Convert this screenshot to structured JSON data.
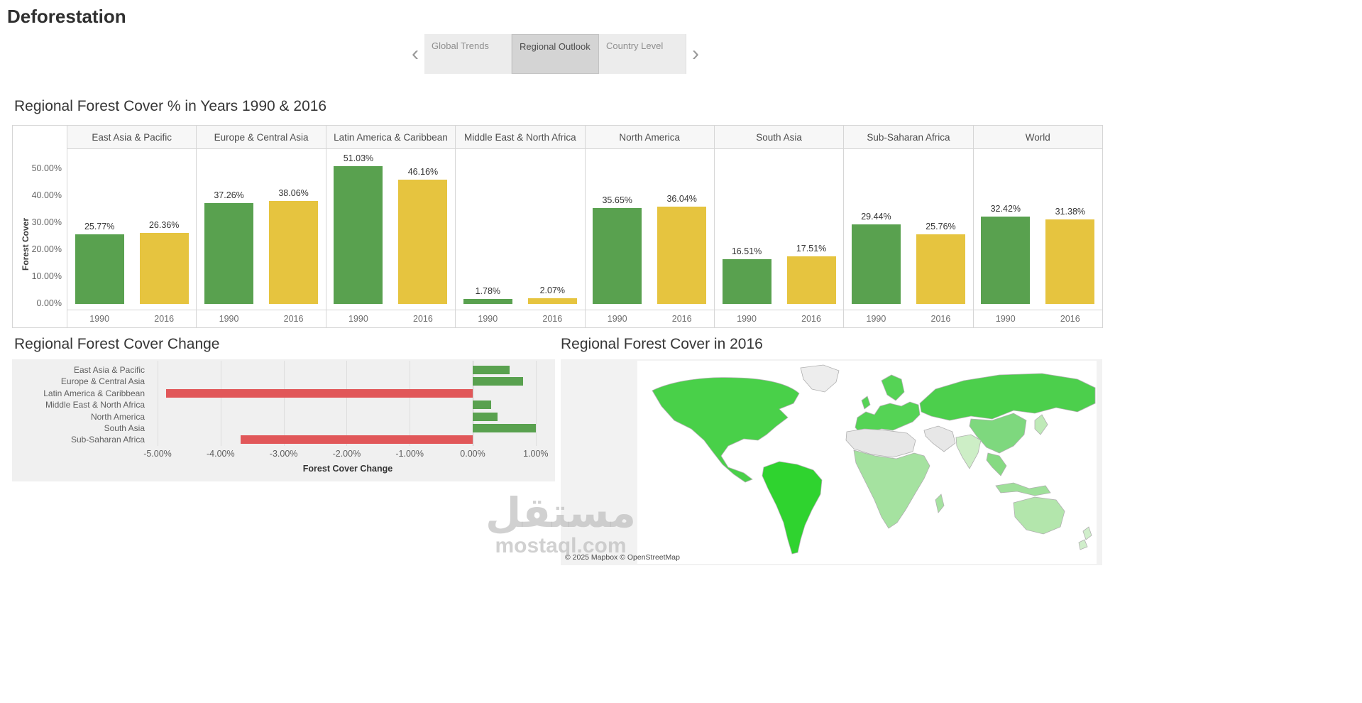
{
  "page": {
    "title": "Deforestation"
  },
  "nav": {
    "prev_glyph": "‹",
    "next_glyph": "›",
    "tabs": [
      {
        "label": "Global Trends",
        "active": false
      },
      {
        "label": "Regional Outlook",
        "active": true
      },
      {
        "label": "Country Level",
        "active": false
      }
    ]
  },
  "chart_data": [
    {
      "type": "bar",
      "title": "Regional Forest Cover % in Years 1990 & 2016",
      "ylabel": "Forest Cover",
      "ylim": [
        0,
        57
      ],
      "yticks": [
        0,
        10,
        20,
        30,
        40,
        50
      ],
      "ytick_unit": "%",
      "categories": [
        "East Asia & Pacific",
        "Europe & Central Asia",
        "Latin America & Caribbean",
        "Middle East & North Africa",
        "North America",
        "South Asia",
        "Sub-Saharan Africa",
        "World"
      ],
      "x_groups": [
        "1990",
        "2016"
      ],
      "series": [
        {
          "name": "1990",
          "color": "#59a14f",
          "values": [
            25.77,
            37.26,
            51.03,
            1.78,
            35.65,
            16.51,
            29.44,
            32.42
          ]
        },
        {
          "name": "2016",
          "color": "#e6c43f",
          "values": [
            26.36,
            38.06,
            46.16,
            2.07,
            36.04,
            17.51,
            25.76,
            31.38
          ]
        }
      ],
      "grid": false,
      "legend": "none"
    },
    {
      "type": "bar-horizontal",
      "title": "Regional Forest Cover Change",
      "xlabel": "Forest Cover Change",
      "xlim": [
        -5.25,
        1.25
      ],
      "xticks": [
        -5,
        -4,
        -3,
        -2,
        -1,
        0,
        1
      ],
      "xtick_unit": "%",
      "categories": [
        "East Asia & Pacific",
        "Europe & Central Asia",
        "Latin America & Caribbean",
        "Middle East & North Africa",
        "North America",
        "South Asia",
        "Sub-Saharan Africa"
      ],
      "values": [
        0.59,
        0.8,
        -4.87,
        0.29,
        0.39,
        1.0,
        -3.68
      ],
      "positive_color": "#59a14f",
      "negative_color": "#e15759",
      "grid": true,
      "legend": "none"
    },
    {
      "type": "map",
      "title": "Regional Forest Cover in 2016",
      "attribution": "© 2025 Mapbox © OpenStreetMap",
      "regions": [
        {
          "id": "north-america",
          "label": "North America",
          "fill": "#49d049"
        },
        {
          "id": "greenland",
          "label": "Greenland",
          "fill": "#ededed"
        },
        {
          "id": "south-america",
          "label": "Latin America & Caribbean",
          "fill": "#2fd32f"
        },
        {
          "id": "europe",
          "label": "Europe",
          "fill": "#55d355"
        },
        {
          "id": "scandinavia",
          "label": "Scandinavia",
          "fill": "#55d355"
        },
        {
          "id": "uk",
          "label": "United Kingdom",
          "fill": "#55d355"
        },
        {
          "id": "russia",
          "label": "Russia & Central Asia",
          "fill": "#4ccf4c"
        },
        {
          "id": "east-asia",
          "label": "East Asia",
          "fill": "#7ed87e"
        },
        {
          "id": "japan",
          "label": "Japan",
          "fill": "#bfeab8"
        },
        {
          "id": "india",
          "label": "South Asia",
          "fill": "#cdeec6"
        },
        {
          "id": "middle-east",
          "label": "Middle East",
          "fill": "#e7e7e7"
        },
        {
          "id": "north-africa",
          "label": "North Africa",
          "fill": "#e7e7e7"
        },
        {
          "id": "sub-saharan-africa",
          "label": "Sub-Saharan Africa",
          "fill": "#a5e2a0"
        },
        {
          "id": "madagascar",
          "label": "Madagascar",
          "fill": "#a5e2a0"
        },
        {
          "id": "southeast-asia",
          "label": "Southeast Asia",
          "fill": "#86da82"
        },
        {
          "id": "indonesia",
          "label": "Indonesia",
          "fill": "#9fe09a"
        },
        {
          "id": "australia",
          "label": "Australia",
          "fill": "#b3e6ac"
        },
        {
          "id": "new-zealand",
          "label": "New Zealand",
          "fill": "#d0eecb"
        }
      ]
    }
  ],
  "watermark": {
    "arabic": "مستقل",
    "domain": "mostaql.com"
  }
}
